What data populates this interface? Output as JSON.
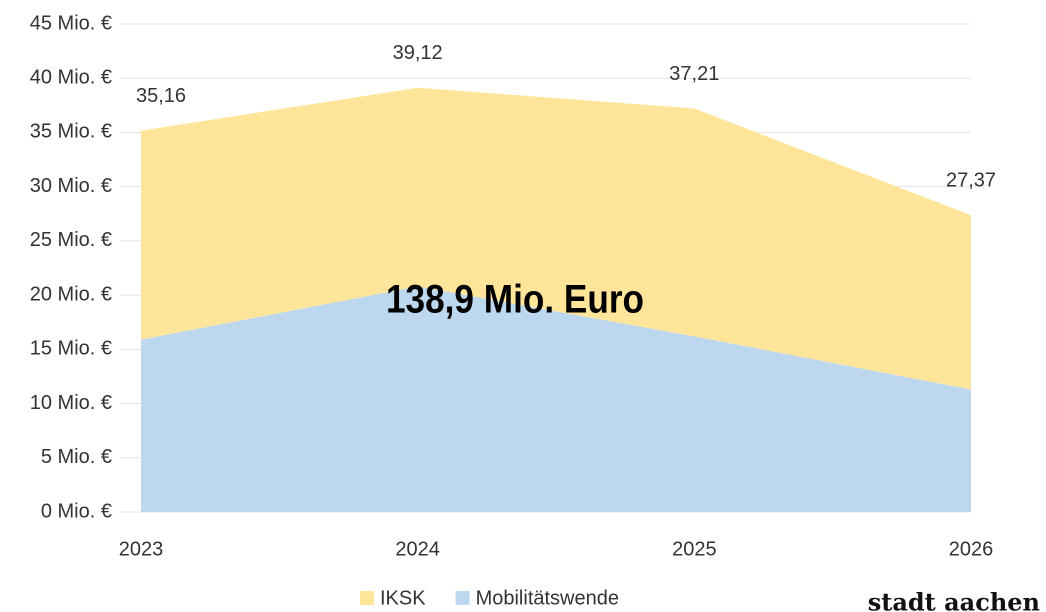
{
  "chart_data": {
    "type": "stacked_area",
    "categories": [
      "2023",
      "2024",
      "2025",
      "2026"
    ],
    "series": [
      {
        "name": "Mobilitätswende",
        "color": "#bdd7ee",
        "values": [
          15.9,
          20.8,
          16.2,
          11.3
        ]
      },
      {
        "name": "IKSK",
        "color": "#fee599",
        "values": [
          19.26,
          18.32,
          21.01,
          16.07
        ]
      }
    ],
    "totals": [
      35.16,
      39.12,
      37.21,
      27.37
    ],
    "total_labels": [
      "35,16",
      "39,12",
      "37,21",
      "27,37"
    ],
    "legend_order": [
      "IKSK",
      "Mobilitätswende"
    ],
    "annotation": "138,9 Mio. Euro",
    "logo": "stadt aachen",
    "ylim": [
      0,
      45
    ],
    "yticks": [
      {
        "value": 0,
        "label": "0 Mio. €"
      },
      {
        "value": 5,
        "label": "5 Mio. €"
      },
      {
        "value": 10,
        "label": "10 Mio. €"
      },
      {
        "value": 15,
        "label": "15 Mio. €"
      },
      {
        "value": 20,
        "label": "20 Mio. €"
      },
      {
        "value": 25,
        "label": "25 Mio. €"
      },
      {
        "value": 30,
        "label": "30 Mio. €"
      },
      {
        "value": 35,
        "label": "35 Mio. €"
      },
      {
        "value": 40,
        "label": "40 Mio. €"
      },
      {
        "value": 45,
        "label": "45 Mio. €"
      }
    ],
    "grid": true
  }
}
